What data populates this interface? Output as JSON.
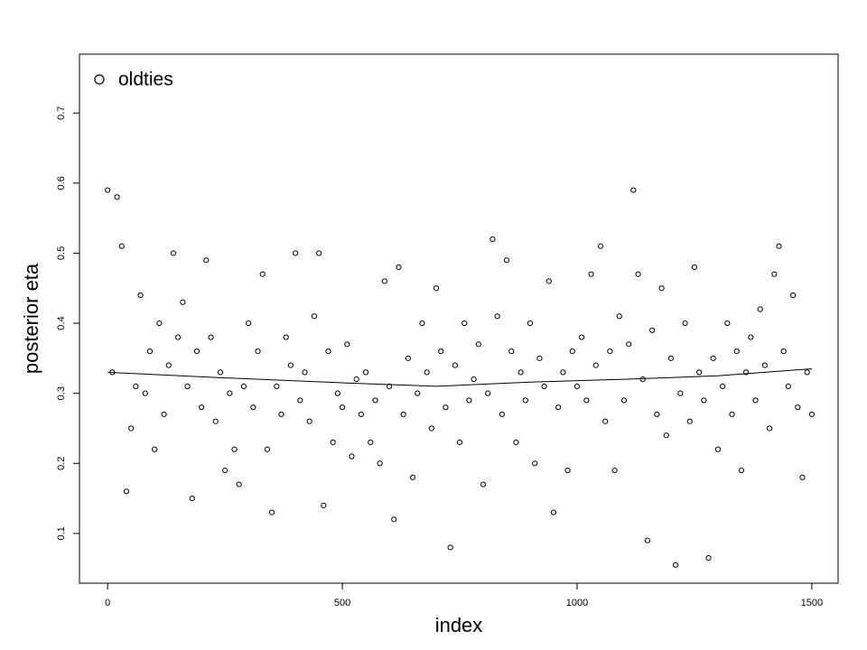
{
  "chart_data": {
    "type": "scatter",
    "xlabel": "index",
    "ylabel": "posterior eta",
    "xlim": [
      -60,
      1556
    ],
    "ylim": [
      0.029,
      0.784
    ],
    "xticks": [
      0,
      500,
      1000,
      1500
    ],
    "yticks": [
      0.1,
      0.2,
      0.3,
      0.4,
      0.5,
      0.6,
      0.7
    ],
    "legend": "topleft",
    "series": [
      {
        "name": "oldties",
        "color": "#000000",
        "marker": "open-circle",
        "x": [
          0,
          10,
          20,
          30,
          40,
          50,
          60,
          70,
          80,
          90,
          100,
          110,
          120,
          130,
          140,
          150,
          160,
          170,
          180,
          190,
          200,
          210,
          220,
          230,
          240,
          250,
          260,
          270,
          280,
          290,
          300,
          310,
          320,
          330,
          340,
          350,
          360,
          370,
          380,
          390,
          400,
          410,
          420,
          430,
          440,
          450,
          460,
          470,
          480,
          490,
          500,
          510,
          520,
          530,
          540,
          550,
          560,
          570,
          580,
          590,
          600,
          610,
          620,
          630,
          640,
          650,
          660,
          670,
          680,
          690,
          700,
          710,
          720,
          730,
          740,
          750,
          760,
          770,
          780,
          790,
          800,
          810,
          820,
          830,
          840,
          850,
          860,
          870,
          880,
          890,
          900,
          910,
          920,
          930,
          940,
          950,
          960,
          970,
          980,
          990,
          1000,
          1010,
          1020,
          1030,
          1040,
          1050,
          1060,
          1070,
          1080,
          1090,
          1100,
          1110,
          1120,
          1130,
          1140,
          1150,
          1160,
          1170,
          1180,
          1190,
          1200,
          1210,
          1220,
          1230,
          1240,
          1250,
          1260,
          1270,
          1280,
          1290,
          1300,
          1310,
          1320,
          1330,
          1340,
          1350,
          1360,
          1370,
          1380,
          1390,
          1400,
          1410,
          1420,
          1430,
          1440,
          1450,
          1460,
          1470,
          1480,
          1490,
          1500
        ],
        "values": [
          0.59,
          0.33,
          0.58,
          0.51,
          0.16,
          0.25,
          0.31,
          0.44,
          0.3,
          0.36,
          0.22,
          0.4,
          0.27,
          0.34,
          0.5,
          0.38,
          0.43,
          0.31,
          0.15,
          0.36,
          0.28,
          0.49,
          0.38,
          0.26,
          0.33,
          0.19,
          0.3,
          0.22,
          0.17,
          0.31,
          0.4,
          0.28,
          0.36,
          0.47,
          0.22,
          0.13,
          0.31,
          0.27,
          0.38,
          0.34,
          0.5,
          0.29,
          0.33,
          0.26,
          0.41,
          0.5,
          0.14,
          0.36,
          0.23,
          0.3,
          0.28,
          0.37,
          0.21,
          0.32,
          0.27,
          0.33,
          0.23,
          0.29,
          0.2,
          0.46,
          0.31,
          0.12,
          0.48,
          0.27,
          0.35,
          0.18,
          0.3,
          0.4,
          0.33,
          0.25,
          0.45,
          0.36,
          0.28,
          0.08,
          0.34,
          0.23,
          0.4,
          0.29,
          0.32,
          0.37,
          0.17,
          0.3,
          0.52,
          0.41,
          0.27,
          0.49,
          0.36,
          0.23,
          0.33,
          0.29,
          0.4,
          0.2,
          0.35,
          0.31,
          0.46,
          0.13,
          0.28,
          0.33,
          0.19,
          0.36,
          0.31,
          0.38,
          0.29,
          0.47,
          0.34,
          0.51,
          0.26,
          0.36,
          0.19,
          0.41,
          0.29,
          0.37,
          0.59,
          0.47,
          0.32,
          0.09,
          0.39,
          0.27,
          0.45,
          0.24,
          0.35,
          0.055,
          0.3,
          0.4,
          0.26,
          0.48,
          0.33,
          0.29,
          0.065,
          0.35,
          0.22,
          0.31,
          0.4,
          0.27,
          0.36,
          0.19,
          0.33,
          0.38,
          0.29,
          0.42,
          0.34,
          0.25,
          0.47,
          0.51,
          0.36,
          0.31,
          0.44,
          0.28,
          0.18,
          0.33,
          0.27
        ]
      },
      {
        "type": "line",
        "color": "#000000",
        "x": [
          0,
          250,
          500,
          700,
          900,
          1100,
          1300,
          1500
        ],
        "values": [
          0.33,
          0.322,
          0.315,
          0.31,
          0.316,
          0.32,
          0.325,
          0.335
        ]
      }
    ]
  }
}
